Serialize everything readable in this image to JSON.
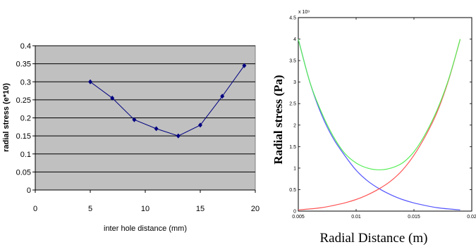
{
  "chart_data": [
    {
      "type": "line",
      "title": "",
      "xlabel": "inter hole distance (mm)",
      "ylabel": "radial stress (e*10)",
      "xlim": [
        0,
        20
      ],
      "ylim": [
        0,
        0.4
      ],
      "x_ticks": [
        "0",
        "5",
        "10",
        "15",
        "20"
      ],
      "y_ticks": [
        "0",
        "0.05",
        "0.1",
        "0.15",
        "0.2",
        "0.25",
        "0.3",
        "0.35",
        "0.4"
      ],
      "grid": true,
      "background": "#c0c0c0",
      "series": [
        {
          "color": "#000080",
          "x": [
            5,
            7,
            9,
            11,
            13,
            15,
            17,
            19
          ],
          "y": [
            0.3,
            0.255,
            0.195,
            0.17,
            0.15,
            0.18,
            0.26,
            0.345
          ]
        }
      ]
    },
    {
      "type": "line",
      "title": "",
      "xlabel": "Radial Distance (m)",
      "ylabel": "Radial  stress (Pa)",
      "exponent_label": "x 10⁹",
      "xlim": [
        0.005,
        0.02
      ],
      "ylim": [
        0,
        4.5
      ],
      "x_ticks": [
        "0.005",
        "0.01",
        "0.015",
        "0.02"
      ],
      "y_ticks": [
        "0",
        "0.5",
        "1",
        "1.5",
        "2",
        "2.5",
        "3",
        "3.5",
        "4",
        "4.5"
      ],
      "grid": false,
      "series": [
        {
          "color": "#5555ff",
          "x": [
            0.005,
            0.006,
            0.007,
            0.008,
            0.009,
            0.01,
            0.011,
            0.012,
            0.013,
            0.014,
            0.015,
            0.016,
            0.017,
            0.018,
            0.019
          ],
          "y": [
            4.0,
            3.0,
            2.25,
            1.7,
            1.3,
            0.95,
            0.7,
            0.52,
            0.38,
            0.27,
            0.19,
            0.13,
            0.08,
            0.05,
            0.03
          ]
        },
        {
          "color": "#ff5555",
          "x": [
            0.005,
            0.006,
            0.007,
            0.008,
            0.009,
            0.01,
            0.011,
            0.012,
            0.013,
            0.014,
            0.015,
            0.016,
            0.017,
            0.018,
            0.019
          ],
          "y": [
            0.03,
            0.05,
            0.08,
            0.13,
            0.19,
            0.27,
            0.38,
            0.52,
            0.7,
            0.95,
            1.3,
            1.75,
            2.3,
            3.05,
            4.0
          ]
        },
        {
          "color": "#55ee55",
          "x": [
            0.005,
            0.006,
            0.007,
            0.008,
            0.009,
            0.01,
            0.011,
            0.012,
            0.013,
            0.014,
            0.015,
            0.016,
            0.017,
            0.018,
            0.019
          ],
          "y": [
            4.0,
            3.0,
            2.3,
            1.75,
            1.35,
            1.12,
            1.0,
            0.96,
            1.0,
            1.12,
            1.38,
            1.8,
            2.35,
            3.07,
            4.0
          ]
        }
      ]
    }
  ]
}
